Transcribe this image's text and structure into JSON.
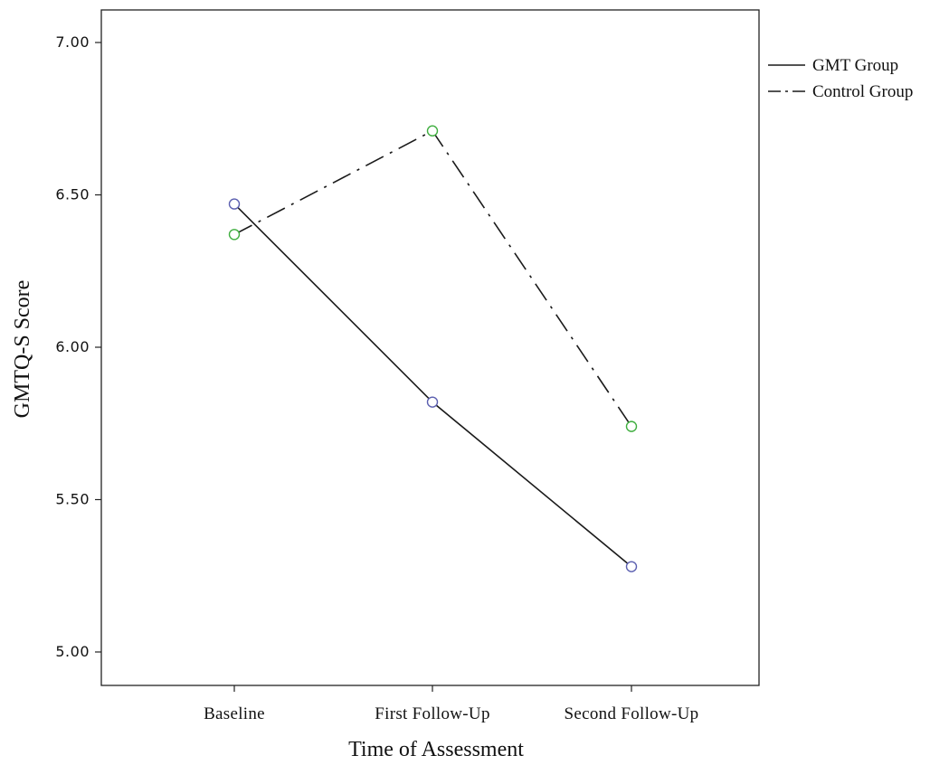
{
  "chart_data": {
    "type": "line",
    "title": "",
    "xlabel": "Time of Assessment",
    "ylabel": "GMTQ-S Score",
    "categories": [
      "Baseline",
      "First Follow-Up",
      "Second Follow-Up"
    ],
    "ylim": [
      4.9,
      7.1
    ],
    "yticks": [
      5.0,
      5.5,
      6.0,
      6.5,
      7.0
    ],
    "ytick_labels": [
      "5.00",
      "5.50",
      "6.00",
      "6.50",
      "7.00"
    ],
    "grid": false,
    "legend_position": "right",
    "series": [
      {
        "name": "GMT Group",
        "values": [
          6.47,
          5.82,
          5.28
        ],
        "line_style": "solid",
        "line_color": "#1a1a1a",
        "marker": "circle",
        "marker_color": "#5b5fb0"
      },
      {
        "name": "Control Group",
        "values": [
          6.37,
          6.71,
          5.74
        ],
        "line_style": "dash-dot",
        "line_color": "#1a1a1a",
        "marker": "circle",
        "marker_color": "#3fae3f"
      }
    ]
  }
}
